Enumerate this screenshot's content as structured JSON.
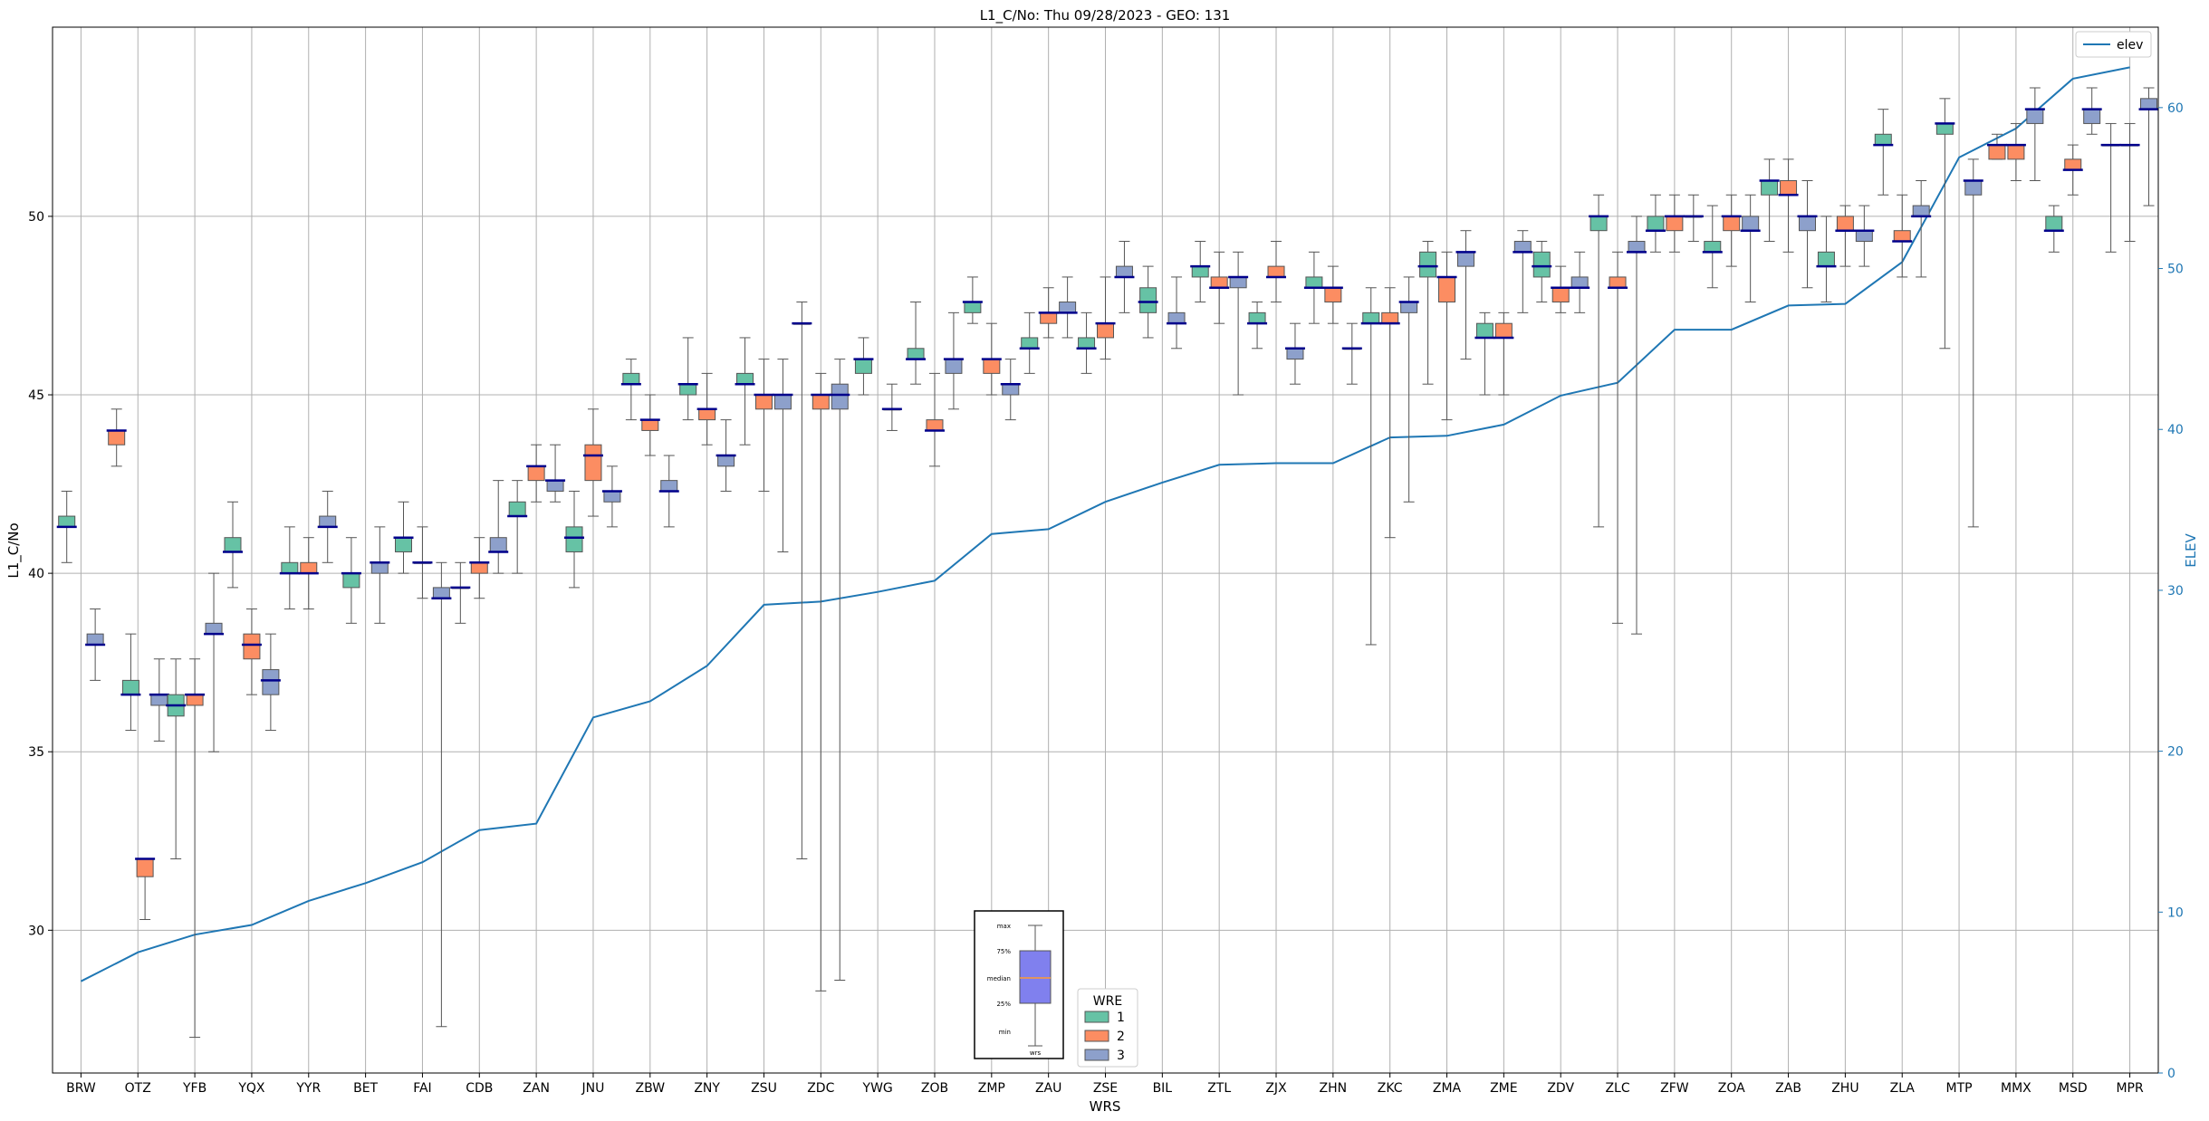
{
  "chart_data": {
    "type": "box",
    "title": "L1_C/No: Thu 09/28/2023 - GEO: 131",
    "xlabel": "WRS",
    "ylabel": "L1_C/No",
    "y2label": "ELEV",
    "ylim": [
      26,
      55.3
    ],
    "y2lim": [
      0,
      65
    ],
    "yticks": [
      30,
      35,
      40,
      45,
      50
    ],
    "y2ticks": [
      0,
      10,
      20,
      30,
      40,
      50,
      60
    ],
    "grid": true,
    "categories": [
      "BRW",
      "OTZ",
      "YFB",
      "YQX",
      "YYR",
      "BET",
      "FAI",
      "CDB",
      "ZAN",
      "JNU",
      "ZBW",
      "ZNY",
      "ZSU",
      "ZDC",
      "YWG",
      "ZOB",
      "ZMP",
      "ZAU",
      "ZSE",
      "BIL",
      "ZTL",
      "ZJX",
      "ZHN",
      "ZKC",
      "ZMA",
      "ZME",
      "ZDV",
      "ZLC",
      "ZFW",
      "ZOA",
      "ZAB",
      "ZHU",
      "ZLA",
      "MTP",
      "MMX",
      "MSD",
      "MPR"
    ],
    "colors": {
      "wre1": "#66c2a5",
      "wre2": "#fc8d62",
      "wre3": "#8da0cb",
      "median": "#00008b",
      "elev": "#1f77b4",
      "whisker": "#555555"
    },
    "legend_wre": {
      "title": "WRE",
      "entries": [
        "1",
        "2",
        "3"
      ],
      "position": "bottom-center"
    },
    "legend_elev": {
      "label": "elev",
      "position": "top-right"
    },
    "inset": {
      "labels": [
        "max",
        "75%",
        "median",
        "25%",
        "min"
      ],
      "xlabel": "wrs"
    },
    "elev": [
      5.7,
      7.5,
      8.6,
      9.2,
      10.7,
      11.8,
      13.1,
      15.1,
      15.5,
      22.1,
      23.1,
      25.3,
      29.1,
      29.3,
      29.9,
      30.6,
      33.5,
      33.8,
      35.5,
      36.7,
      37.8,
      37.9,
      37.9,
      39.5,
      39.6,
      40.3,
      42.1,
      42.9,
      46.2,
      46.2,
      47.7,
      47.8,
      50.4,
      56.9,
      58.7,
      61.8,
      62.5
    ],
    "boxes": [
      {
        "wrs": "BRW",
        "wre": 1,
        "min": 40.3,
        "q1": 41.3,
        "median": 41.3,
        "q3": 41.6,
        "max": 42.3
      },
      {
        "wrs": "BRW",
        "wre": 3,
        "min": 37.0,
        "q1": 38.0,
        "median": 38.0,
        "q3": 38.3,
        "max": 39.0
      },
      {
        "wrs": "OTZ",
        "wre": 2,
        "min": 43.0,
        "q1": 43.6,
        "median": 44.0,
        "q3": 44.0,
        "max": 44.6
      },
      {
        "wrs": "OTZ",
        "wre": 1,
        "min": 35.6,
        "q1": 36.6,
        "median": 36.6,
        "q3": 37.0,
        "max": 38.3
      },
      {
        "wrs": "OTZ",
        "wre": 2,
        "min": 30.3,
        "q1": 31.5,
        "median": 32.0,
        "q3": 32.0,
        "max": 32.0
      },
      {
        "wrs": "OTZ",
        "wre": 3,
        "min": 35.3,
        "q1": 36.3,
        "median": 36.6,
        "q3": 36.6,
        "max": 37.6
      },
      {
        "wrs": "YFB",
        "wre": 1,
        "min": 32.0,
        "q1": 36.0,
        "median": 36.3,
        "q3": 36.6,
        "max": 37.6
      },
      {
        "wrs": "YFB",
        "wre": 2,
        "min": 27.0,
        "q1": 36.3,
        "median": 36.6,
        "q3": 36.6,
        "max": 37.6
      },
      {
        "wrs": "YFB",
        "wre": 3,
        "min": 35.0,
        "q1": 38.3,
        "median": 38.3,
        "q3": 38.6,
        "max": 40.0
      },
      {
        "wrs": "YQX",
        "wre": 1,
        "min": 39.6,
        "q1": 40.6,
        "median": 40.6,
        "q3": 41.0,
        "max": 42.0
      },
      {
        "wrs": "YQX",
        "wre": 2,
        "min": 36.6,
        "q1": 37.6,
        "median": 38.0,
        "q3": 38.3,
        "max": 39.0
      },
      {
        "wrs": "YQX",
        "wre": 3,
        "min": 35.6,
        "q1": 36.6,
        "median": 37.0,
        "q3": 37.3,
        "max": 38.3
      },
      {
        "wrs": "YYR",
        "wre": 1,
        "min": 39.0,
        "q1": 40.0,
        "median": 40.0,
        "q3": 40.3,
        "max": 41.3
      },
      {
        "wrs": "YYR",
        "wre": 2,
        "min": 39.0,
        "q1": 40.0,
        "median": 40.0,
        "q3": 40.3,
        "max": 41.0
      },
      {
        "wrs": "YYR",
        "wre": 3,
        "min": 40.3,
        "q1": 41.3,
        "median": 41.3,
        "q3": 41.6,
        "max": 42.3
      },
      {
        "wrs": "BET",
        "wre": 1,
        "min": 38.6,
        "q1": 39.6,
        "median": 40.0,
        "q3": 40.0,
        "max": 41.0
      },
      {
        "wrs": "BET",
        "wre": 3,
        "min": 38.6,
        "q1": 40.0,
        "median": 40.3,
        "q3": 40.3,
        "max": 41.3
      },
      {
        "wrs": "FAI",
        "wre": 1,
        "min": 40.0,
        "q1": 40.6,
        "median": 41.0,
        "q3": 41.0,
        "max": 42.0
      },
      {
        "wrs": "FAI",
        "wre": 2,
        "min": 39.3,
        "q1": 40.3,
        "median": 40.3,
        "q3": 40.3,
        "max": 41.3
      },
      {
        "wrs": "FAI",
        "wre": 3,
        "min": 27.3,
        "q1": 39.3,
        "median": 39.3,
        "q3": 39.6,
        "max": 40.3
      },
      {
        "wrs": "CDB",
        "wre": 3,
        "min": 38.6,
        "q1": 39.6,
        "median": 39.6,
        "q3": 39.6,
        "max": 40.3
      },
      {
        "wrs": "CDB",
        "wre": 2,
        "min": 39.3,
        "q1": 40.0,
        "median": 40.3,
        "q3": 40.3,
        "max": 41.0
      },
      {
        "wrs": "CDB",
        "wre": 3,
        "min": 40.0,
        "q1": 40.6,
        "median": 40.6,
        "q3": 41.0,
        "max": 42.6
      },
      {
        "wrs": "ZAN",
        "wre": 1,
        "min": 40.0,
        "q1": 41.6,
        "median": 41.6,
        "q3": 42.0,
        "max": 42.6
      },
      {
        "wrs": "ZAN",
        "wre": 2,
        "min": 42.0,
        "q1": 42.6,
        "median": 43.0,
        "q3": 43.0,
        "max": 43.6
      },
      {
        "wrs": "ZAN",
        "wre": 3,
        "min": 42.0,
        "q1": 42.3,
        "median": 42.6,
        "q3": 42.6,
        "max": 43.6
      },
      {
        "wrs": "JNU",
        "wre": 1,
        "min": 39.6,
        "q1": 40.6,
        "median": 41.0,
        "q3": 41.3,
        "max": 42.3
      },
      {
        "wrs": "JNU",
        "wre": 2,
        "min": 41.6,
        "q1": 42.6,
        "median": 43.3,
        "q3": 43.6,
        "max": 44.6
      },
      {
        "wrs": "JNU",
        "wre": 3,
        "min": 41.3,
        "q1": 42.0,
        "median": 42.3,
        "q3": 42.3,
        "max": 43.0
      },
      {
        "wrs": "ZBW",
        "wre": 1,
        "min": 44.3,
        "q1": 45.3,
        "median": 45.3,
        "q3": 45.6,
        "max": 46.0
      },
      {
        "wrs": "ZBW",
        "wre": 2,
        "min": 43.3,
        "q1": 44.0,
        "median": 44.3,
        "q3": 44.3,
        "max": 45.0
      },
      {
        "wrs": "ZBW",
        "wre": 3,
        "min": 41.3,
        "q1": 42.3,
        "median": 42.3,
        "q3": 42.6,
        "max": 43.3
      },
      {
        "wrs": "ZNY",
        "wre": 1,
        "min": 44.3,
        "q1": 45.0,
        "median": 45.3,
        "q3": 45.3,
        "max": 46.6
      },
      {
        "wrs": "ZNY",
        "wre": 2,
        "min": 43.6,
        "q1": 44.3,
        "median": 44.6,
        "q3": 44.6,
        "max": 45.6
      },
      {
        "wrs": "ZNY",
        "wre": 3,
        "min": 42.3,
        "q1": 43.0,
        "median": 43.3,
        "q3": 43.3,
        "max": 44.3
      },
      {
        "wrs": "ZSU",
        "wre": 1,
        "min": 43.6,
        "q1": 45.3,
        "median": 45.3,
        "q3": 45.6,
        "max": 46.6
      },
      {
        "wrs": "ZSU",
        "wre": 2,
        "min": 42.3,
        "q1": 44.6,
        "median": 45.0,
        "q3": 45.0,
        "max": 46.0
      },
      {
        "wrs": "ZSU",
        "wre": 3,
        "min": 40.6,
        "q1": 44.6,
        "median": 45.0,
        "q3": 45.0,
        "max": 46.0
      },
      {
        "wrs": "ZDC",
        "wre": 1,
        "min": 32.0,
        "q1": 47.0,
        "median": 47.0,
        "q3": 47.0,
        "max": 47.6
      },
      {
        "wrs": "ZDC",
        "wre": 2,
        "min": 28.3,
        "q1": 44.6,
        "median": 45.0,
        "q3": 45.0,
        "max": 45.6
      },
      {
        "wrs": "ZDC",
        "wre": 3,
        "min": 28.6,
        "q1": 44.6,
        "median": 45.0,
        "q3": 45.3,
        "max": 46.0
      },
      {
        "wrs": "YWG",
        "wre": 1,
        "min": 45.0,
        "q1": 45.6,
        "median": 46.0,
        "q3": 46.0,
        "max": 46.6
      },
      {
        "wrs": "YWG",
        "wre": 3,
        "min": 44.0,
        "q1": 44.6,
        "median": 44.6,
        "q3": 44.6,
        "max": 45.3
      },
      {
        "wrs": "ZOB",
        "wre": 1,
        "min": 45.3,
        "q1": 46.0,
        "median": 46.0,
        "q3": 46.3,
        "max": 47.6
      },
      {
        "wrs": "ZOB",
        "wre": 2,
        "min": 43.0,
        "q1": 44.0,
        "median": 44.0,
        "q3": 44.3,
        "max": 45.6
      },
      {
        "wrs": "ZOB",
        "wre": 3,
        "min": 44.6,
        "q1": 45.6,
        "median": 46.0,
        "q3": 46.0,
        "max": 47.3
      },
      {
        "wrs": "ZMP",
        "wre": 1,
        "min": 47.0,
        "q1": 47.3,
        "median": 47.6,
        "q3": 47.6,
        "max": 48.3
      },
      {
        "wrs": "ZMP",
        "wre": 2,
        "min": 45.0,
        "q1": 45.6,
        "median": 46.0,
        "q3": 46.0,
        "max": 47.0
      },
      {
        "wrs": "ZMP",
        "wre": 3,
        "min": 44.3,
        "q1": 45.0,
        "median": 45.3,
        "q3": 45.3,
        "max": 46.0
      },
      {
        "wrs": "ZAU",
        "wre": 1,
        "min": 45.6,
        "q1": 46.3,
        "median": 46.3,
        "q3": 46.6,
        "max": 47.3
      },
      {
        "wrs": "ZAU",
        "wre": 2,
        "min": 46.6,
        "q1": 47.0,
        "median": 47.3,
        "q3": 47.3,
        "max": 48.0
      },
      {
        "wrs": "ZAU",
        "wre": 3,
        "min": 46.6,
        "q1": 47.3,
        "median": 47.3,
        "q3": 47.6,
        "max": 48.3
      },
      {
        "wrs": "ZSE",
        "wre": 1,
        "min": 45.6,
        "q1": 46.3,
        "median": 46.3,
        "q3": 46.6,
        "max": 47.3
      },
      {
        "wrs": "ZSE",
        "wre": 2,
        "min": 46.0,
        "q1": 46.6,
        "median": 47.0,
        "q3": 47.0,
        "max": 48.3
      },
      {
        "wrs": "ZSE",
        "wre": 3,
        "min": 47.3,
        "q1": 48.3,
        "median": 48.3,
        "q3": 48.6,
        "max": 49.3
      },
      {
        "wrs": "BIL",
        "wre": 1,
        "min": 46.6,
        "q1": 47.3,
        "median": 47.6,
        "q3": 48.0,
        "max": 48.6
      },
      {
        "wrs": "BIL",
        "wre": 3,
        "min": 46.3,
        "q1": 47.0,
        "median": 47.0,
        "q3": 47.3,
        "max": 48.3
      },
      {
        "wrs": "ZTL",
        "wre": 1,
        "min": 47.6,
        "q1": 48.3,
        "median": 48.6,
        "q3": 48.6,
        "max": 49.3
      },
      {
        "wrs": "ZTL",
        "wre": 2,
        "min": 47.0,
        "q1": 48.0,
        "median": 48.0,
        "q3": 48.3,
        "max": 49.0
      },
      {
        "wrs": "ZTL",
        "wre": 3,
        "min": 45.0,
        "q1": 48.0,
        "median": 48.3,
        "q3": 48.3,
        "max": 49.0
      },
      {
        "wrs": "ZJX",
        "wre": 1,
        "min": 46.3,
        "q1": 47.0,
        "median": 47.0,
        "q3": 47.3,
        "max": 47.6
      },
      {
        "wrs": "ZJX",
        "wre": 2,
        "min": 47.6,
        "q1": 48.3,
        "median": 48.3,
        "q3": 48.6,
        "max": 49.3
      },
      {
        "wrs": "ZJX",
        "wre": 3,
        "min": 45.3,
        "q1": 46.0,
        "median": 46.3,
        "q3": 46.3,
        "max": 47.0
      },
      {
        "wrs": "ZHN",
        "wre": 1,
        "min": 47.0,
        "q1": 48.0,
        "median": 48.0,
        "q3": 48.3,
        "max": 49.0
      },
      {
        "wrs": "ZHN",
        "wre": 2,
        "min": 47.0,
        "q1": 47.6,
        "median": 48.0,
        "q3": 48.0,
        "max": 48.6
      },
      {
        "wrs": "ZHN",
        "wre": 3,
        "min": 45.3,
        "q1": 46.3,
        "median": 46.3,
        "q3": 46.3,
        "max": 47.0
      },
      {
        "wrs": "ZKC",
        "wre": 1,
        "min": 38.0,
        "q1": 47.0,
        "median": 47.0,
        "q3": 47.3,
        "max": 48.0
      },
      {
        "wrs": "ZKC",
        "wre": 2,
        "min": 41.0,
        "q1": 47.0,
        "median": 47.0,
        "q3": 47.3,
        "max": 48.0
      },
      {
        "wrs": "ZKC",
        "wre": 3,
        "min": 42.0,
        "q1": 47.3,
        "median": 47.6,
        "q3": 47.6,
        "max": 48.3
      },
      {
        "wrs": "ZMA",
        "wre": 1,
        "min": 45.3,
        "q1": 48.3,
        "median": 48.6,
        "q3": 49.0,
        "max": 49.3
      },
      {
        "wrs": "ZMA",
        "wre": 2,
        "min": 44.3,
        "q1": 47.6,
        "median": 48.3,
        "q3": 48.3,
        "max": 49.0
      },
      {
        "wrs": "ZMA",
        "wre": 3,
        "min": 46.0,
        "q1": 48.6,
        "median": 49.0,
        "q3": 49.0,
        "max": 49.6
      },
      {
        "wrs": "ZME",
        "wre": 1,
        "min": 45.0,
        "q1": 46.6,
        "median": 46.6,
        "q3": 47.0,
        "max": 47.3
      },
      {
        "wrs": "ZME",
        "wre": 2,
        "min": 45.0,
        "q1": 46.6,
        "median": 46.6,
        "q3": 47.0,
        "max": 47.3
      },
      {
        "wrs": "ZME",
        "wre": 3,
        "min": 47.3,
        "q1": 49.0,
        "median": 49.0,
        "q3": 49.3,
        "max": 49.6
      },
      {
        "wrs": "ZDV",
        "wre": 1,
        "min": 47.6,
        "q1": 48.3,
        "median": 48.6,
        "q3": 49.0,
        "max": 49.3
      },
      {
        "wrs": "ZDV",
        "wre": 2,
        "min": 47.3,
        "q1": 47.6,
        "median": 48.0,
        "q3": 48.0,
        "max": 48.6
      },
      {
        "wrs": "ZDV",
        "wre": 3,
        "min": 47.3,
        "q1": 48.0,
        "median": 48.0,
        "q3": 48.3,
        "max": 49.0
      },
      {
        "wrs": "ZLC",
        "wre": 1,
        "min": 41.3,
        "q1": 49.6,
        "median": 50.0,
        "q3": 50.0,
        "max": 50.6
      },
      {
        "wrs": "ZLC",
        "wre": 2,
        "min": 38.6,
        "q1": 48.0,
        "median": 48.0,
        "q3": 48.3,
        "max": 49.0
      },
      {
        "wrs": "ZLC",
        "wre": 3,
        "min": 38.3,
        "q1": 49.0,
        "median": 49.0,
        "q3": 49.3,
        "max": 50.0
      },
      {
        "wrs": "ZFW",
        "wre": 1,
        "min": 49.0,
        "q1": 49.6,
        "median": 49.6,
        "q3": 50.0,
        "max": 50.6
      },
      {
        "wrs": "ZFW",
        "wre": 2,
        "min": 49.0,
        "q1": 49.6,
        "median": 50.0,
        "q3": 50.0,
        "max": 50.6
      },
      {
        "wrs": "ZFW",
        "wre": 3,
        "min": 49.3,
        "q1": 50.0,
        "median": 50.0,
        "q3": 50.0,
        "max": 50.6
      },
      {
        "wrs": "ZOA",
        "wre": 1,
        "min": 48.0,
        "q1": 49.0,
        "median": 49.0,
        "q3": 49.3,
        "max": 50.3
      },
      {
        "wrs": "ZOA",
        "wre": 2,
        "min": 48.6,
        "q1": 49.6,
        "median": 50.0,
        "q3": 50.0,
        "max": 50.6
      },
      {
        "wrs": "ZOA",
        "wre": 3,
        "min": 47.6,
        "q1": 49.6,
        "median": 49.6,
        "q3": 50.0,
        "max": 50.6
      },
      {
        "wrs": "ZAB",
        "wre": 1,
        "min": 49.3,
        "q1": 50.6,
        "median": 51.0,
        "q3": 51.0,
        "max": 51.6
      },
      {
        "wrs": "ZAB",
        "wre": 2,
        "min": 49.0,
        "q1": 50.6,
        "median": 50.6,
        "q3": 51.0,
        "max": 51.6
      },
      {
        "wrs": "ZAB",
        "wre": 3,
        "min": 48.0,
        "q1": 49.6,
        "median": 50.0,
        "q3": 50.0,
        "max": 51.0
      },
      {
        "wrs": "ZHU",
        "wre": 1,
        "min": 47.6,
        "q1": 48.6,
        "median": 48.6,
        "q3": 49.0,
        "max": 50.0
      },
      {
        "wrs": "ZHU",
        "wre": 2,
        "min": 48.6,
        "q1": 49.6,
        "median": 49.6,
        "q3": 50.0,
        "max": 50.3
      },
      {
        "wrs": "ZHU",
        "wre": 3,
        "min": 48.6,
        "q1": 49.3,
        "median": 49.6,
        "q3": 49.6,
        "max": 50.3
      },
      {
        "wrs": "ZLA",
        "wre": 1,
        "min": 50.6,
        "q1": 52.0,
        "median": 52.0,
        "q3": 52.3,
        "max": 53.0
      },
      {
        "wrs": "ZLA",
        "wre": 2,
        "min": 48.3,
        "q1": 49.3,
        "median": 49.3,
        "q3": 49.6,
        "max": 50.6
      },
      {
        "wrs": "ZLA",
        "wre": 3,
        "min": 48.3,
        "q1": 50.0,
        "median": 50.0,
        "q3": 50.3,
        "max": 51.0
      },
      {
        "wrs": "MTP",
        "wre": 1,
        "min": 46.3,
        "q1": 52.3,
        "median": 52.6,
        "q3": 52.6,
        "max": 53.3
      },
      {
        "wrs": "MTP",
        "wre": 3,
        "min": 41.3,
        "q1": 50.6,
        "median": 51.0,
        "q3": 51.0,
        "max": 51.6
      },
      {
        "wrs": "MMX",
        "wre": 2,
        "min": 51.6,
        "q1": 51.6,
        "median": 52.0,
        "q3": 52.0,
        "max": 52.3
      },
      {
        "wrs": "MMX",
        "wre": 2,
        "min": 51.0,
        "q1": 51.6,
        "median": 52.0,
        "q3": 52.0,
        "max": 52.6
      },
      {
        "wrs": "MMX",
        "wre": 3,
        "min": 51.0,
        "q1": 52.6,
        "median": 53.0,
        "q3": 53.0,
        "max": 53.6
      },
      {
        "wrs": "MSD",
        "wre": 1,
        "min": 49.0,
        "q1": 49.6,
        "median": 49.6,
        "q3": 50.0,
        "max": 50.3
      },
      {
        "wrs": "MSD",
        "wre": 2,
        "min": 50.6,
        "q1": 51.3,
        "median": 51.3,
        "q3": 51.6,
        "max": 52.0
      },
      {
        "wrs": "MSD",
        "wre": 3,
        "min": 52.3,
        "q1": 52.6,
        "median": 53.0,
        "q3": 53.0,
        "max": 53.6
      },
      {
        "wrs": "MPR",
        "wre": 3,
        "min": 49.0,
        "q1": 52.0,
        "median": 52.0,
        "q3": 52.0,
        "max": 52.6
      },
      {
        "wrs": "MPR",
        "wre": 2,
        "min": 49.3,
        "q1": 52.0,
        "median": 52.0,
        "q3": 52.0,
        "max": 52.6
      },
      {
        "wrs": "MPR",
        "wre": 3,
        "min": 50.3,
        "q1": 53.0,
        "median": 53.0,
        "q3": 53.3,
        "max": 53.6
      }
    ]
  }
}
